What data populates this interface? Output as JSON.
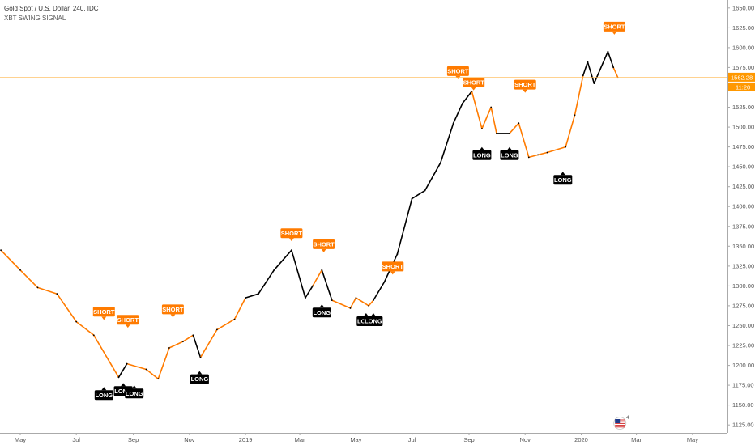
{
  "header": {
    "symbol_line": "Gold Spot / U.S. Dollar, 240, IDC",
    "indicator_line": "XBT SWING SIGNAL"
  },
  "colors": {
    "orange": "#ff7b00",
    "black": "#000000",
    "axis_text": "#555555",
    "axis_line": "#aaaaaa",
    "price_line": "#ffb74d",
    "current_price_bg": "#ff9800"
  },
  "axis": {
    "y_ticks": [
      "1650.00",
      "1625.00",
      "1600.00",
      "1575.00",
      "1550.00",
      "1525.00",
      "1500.00",
      "1475.00",
      "1450.00",
      "1425.00",
      "1400.00",
      "1375.00",
      "1350.00",
      "1325.00",
      "1300.00",
      "1275.00",
      "1250.00",
      "1225.00",
      "1200.00",
      "1175.00",
      "1150.00",
      "1125.00"
    ],
    "x_ticks": [
      "May",
      "Jul",
      "Sep",
      "Nov",
      "2019",
      "Mar",
      "May",
      "Jul",
      "Sep",
      "Nov",
      "2020",
      "Mar",
      "May"
    ],
    "current_price": "1562.28",
    "countdown": "11:20",
    "watermark_day": "4"
  },
  "chart_data": {
    "type": "line",
    "title": "Gold Spot / U.S. Dollar, 240, IDC",
    "xlabel": "",
    "ylabel": "",
    "ylim": [
      1115,
      1660
    ],
    "x": [
      "2018-04-10",
      "2018-05-01",
      "2018-05-20",
      "2018-06-10",
      "2018-07-01",
      "2018-07-20",
      "2018-08-16",
      "2018-08-25",
      "2018-09-15",
      "2018-09-28",
      "2018-10-10",
      "2018-10-25",
      "2018-11-05",
      "2018-11-13",
      "2018-12-01",
      "2018-12-20",
      "2019-01-01",
      "2019-01-15",
      "2019-02-01",
      "2019-02-20",
      "2019-03-07",
      "2019-03-15",
      "2019-03-25",
      "2019-04-05",
      "2019-04-25",
      "2019-05-01",
      "2019-05-15",
      "2019-05-20",
      "2019-06-01",
      "2019-06-15",
      "2019-07-01",
      "2019-07-15",
      "2019-08-01",
      "2019-08-15",
      "2019-08-25",
      "2019-09-04",
      "2019-09-15",
      "2019-09-25",
      "2019-10-01",
      "2019-10-15",
      "2019-10-25",
      "2019-11-05",
      "2019-11-15",
      "2019-11-25",
      "2019-12-15",
      "2019-12-25",
      "2020-01-03",
      "2020-01-08",
      "2020-01-15",
      "2020-01-30",
      "2020-02-05",
      "2020-02-10"
    ],
    "series": [
      {
        "values": [
          1345,
          1320,
          1298,
          1290,
          1255,
          1238,
          1185,
          1202,
          1195,
          1183,
          1222,
          1230,
          1238,
          1210,
          1245,
          1258,
          1285,
          1290,
          1320,
          1345,
          1285,
          1300,
          1320,
          1282,
          1272,
          1285,
          1275,
          1282,
          1305,
          1340,
          1410,
          1420,
          1455,
          1505,
          1530,
          1545,
          1498,
          1525,
          1492,
          1492,
          1505,
          1462,
          1465,
          1468,
          1475,
          1515,
          1565,
          1582,
          1555,
          1595,
          1575,
          1562
        ]
      }
    ],
    "annotations": [
      {
        "label": "SHORT",
        "x": "2018-07-31",
        "y": 1243
      },
      {
        "label": "SHORT",
        "x": "2018-08-26",
        "y": 1233
      },
      {
        "label": "SHORT",
        "x": "2018-10-14",
        "y": 1246
      },
      {
        "label": "SHORT",
        "x": "2019-02-20",
        "y": 1342
      },
      {
        "label": "SHORT",
        "x": "2019-03-27",
        "y": 1328
      },
      {
        "label": "SHORT",
        "x": "2019-06-10",
        "y": 1300
      },
      {
        "label": "SHORT",
        "x": "2019-08-20",
        "y": 1546
      },
      {
        "label": "SHORT",
        "x": "2019-09-06",
        "y": 1532
      },
      {
        "label": "SHORT",
        "x": "2019-11-01",
        "y": 1529
      },
      {
        "label": "SHORT",
        "x": "2020-02-06",
        "y": 1602
      },
      {
        "label": "LONG",
        "x": "2018-07-31",
        "y": 1183
      },
      {
        "label": "LONG",
        "x": "2018-08-21",
        "y": 1188
      },
      {
        "label": "LONG",
        "x": "2018-09-02",
        "y": 1185
      },
      {
        "label": "LONG",
        "x": "2018-11-12",
        "y": 1203
      },
      {
        "label": "LONG",
        "x": "2019-03-25",
        "y": 1287
      },
      {
        "label": "LONG",
        "x": "2019-05-12",
        "y": 1276
      },
      {
        "label": "LONG",
        "x": "2019-05-20",
        "y": 1276
      },
      {
        "label": "LONG",
        "x": "2019-09-15",
        "y": 1485
      },
      {
        "label": "LONG",
        "x": "2019-10-15",
        "y": 1485
      },
      {
        "label": "LONG",
        "x": "2019-12-12",
        "y": 1454
      }
    ]
  }
}
